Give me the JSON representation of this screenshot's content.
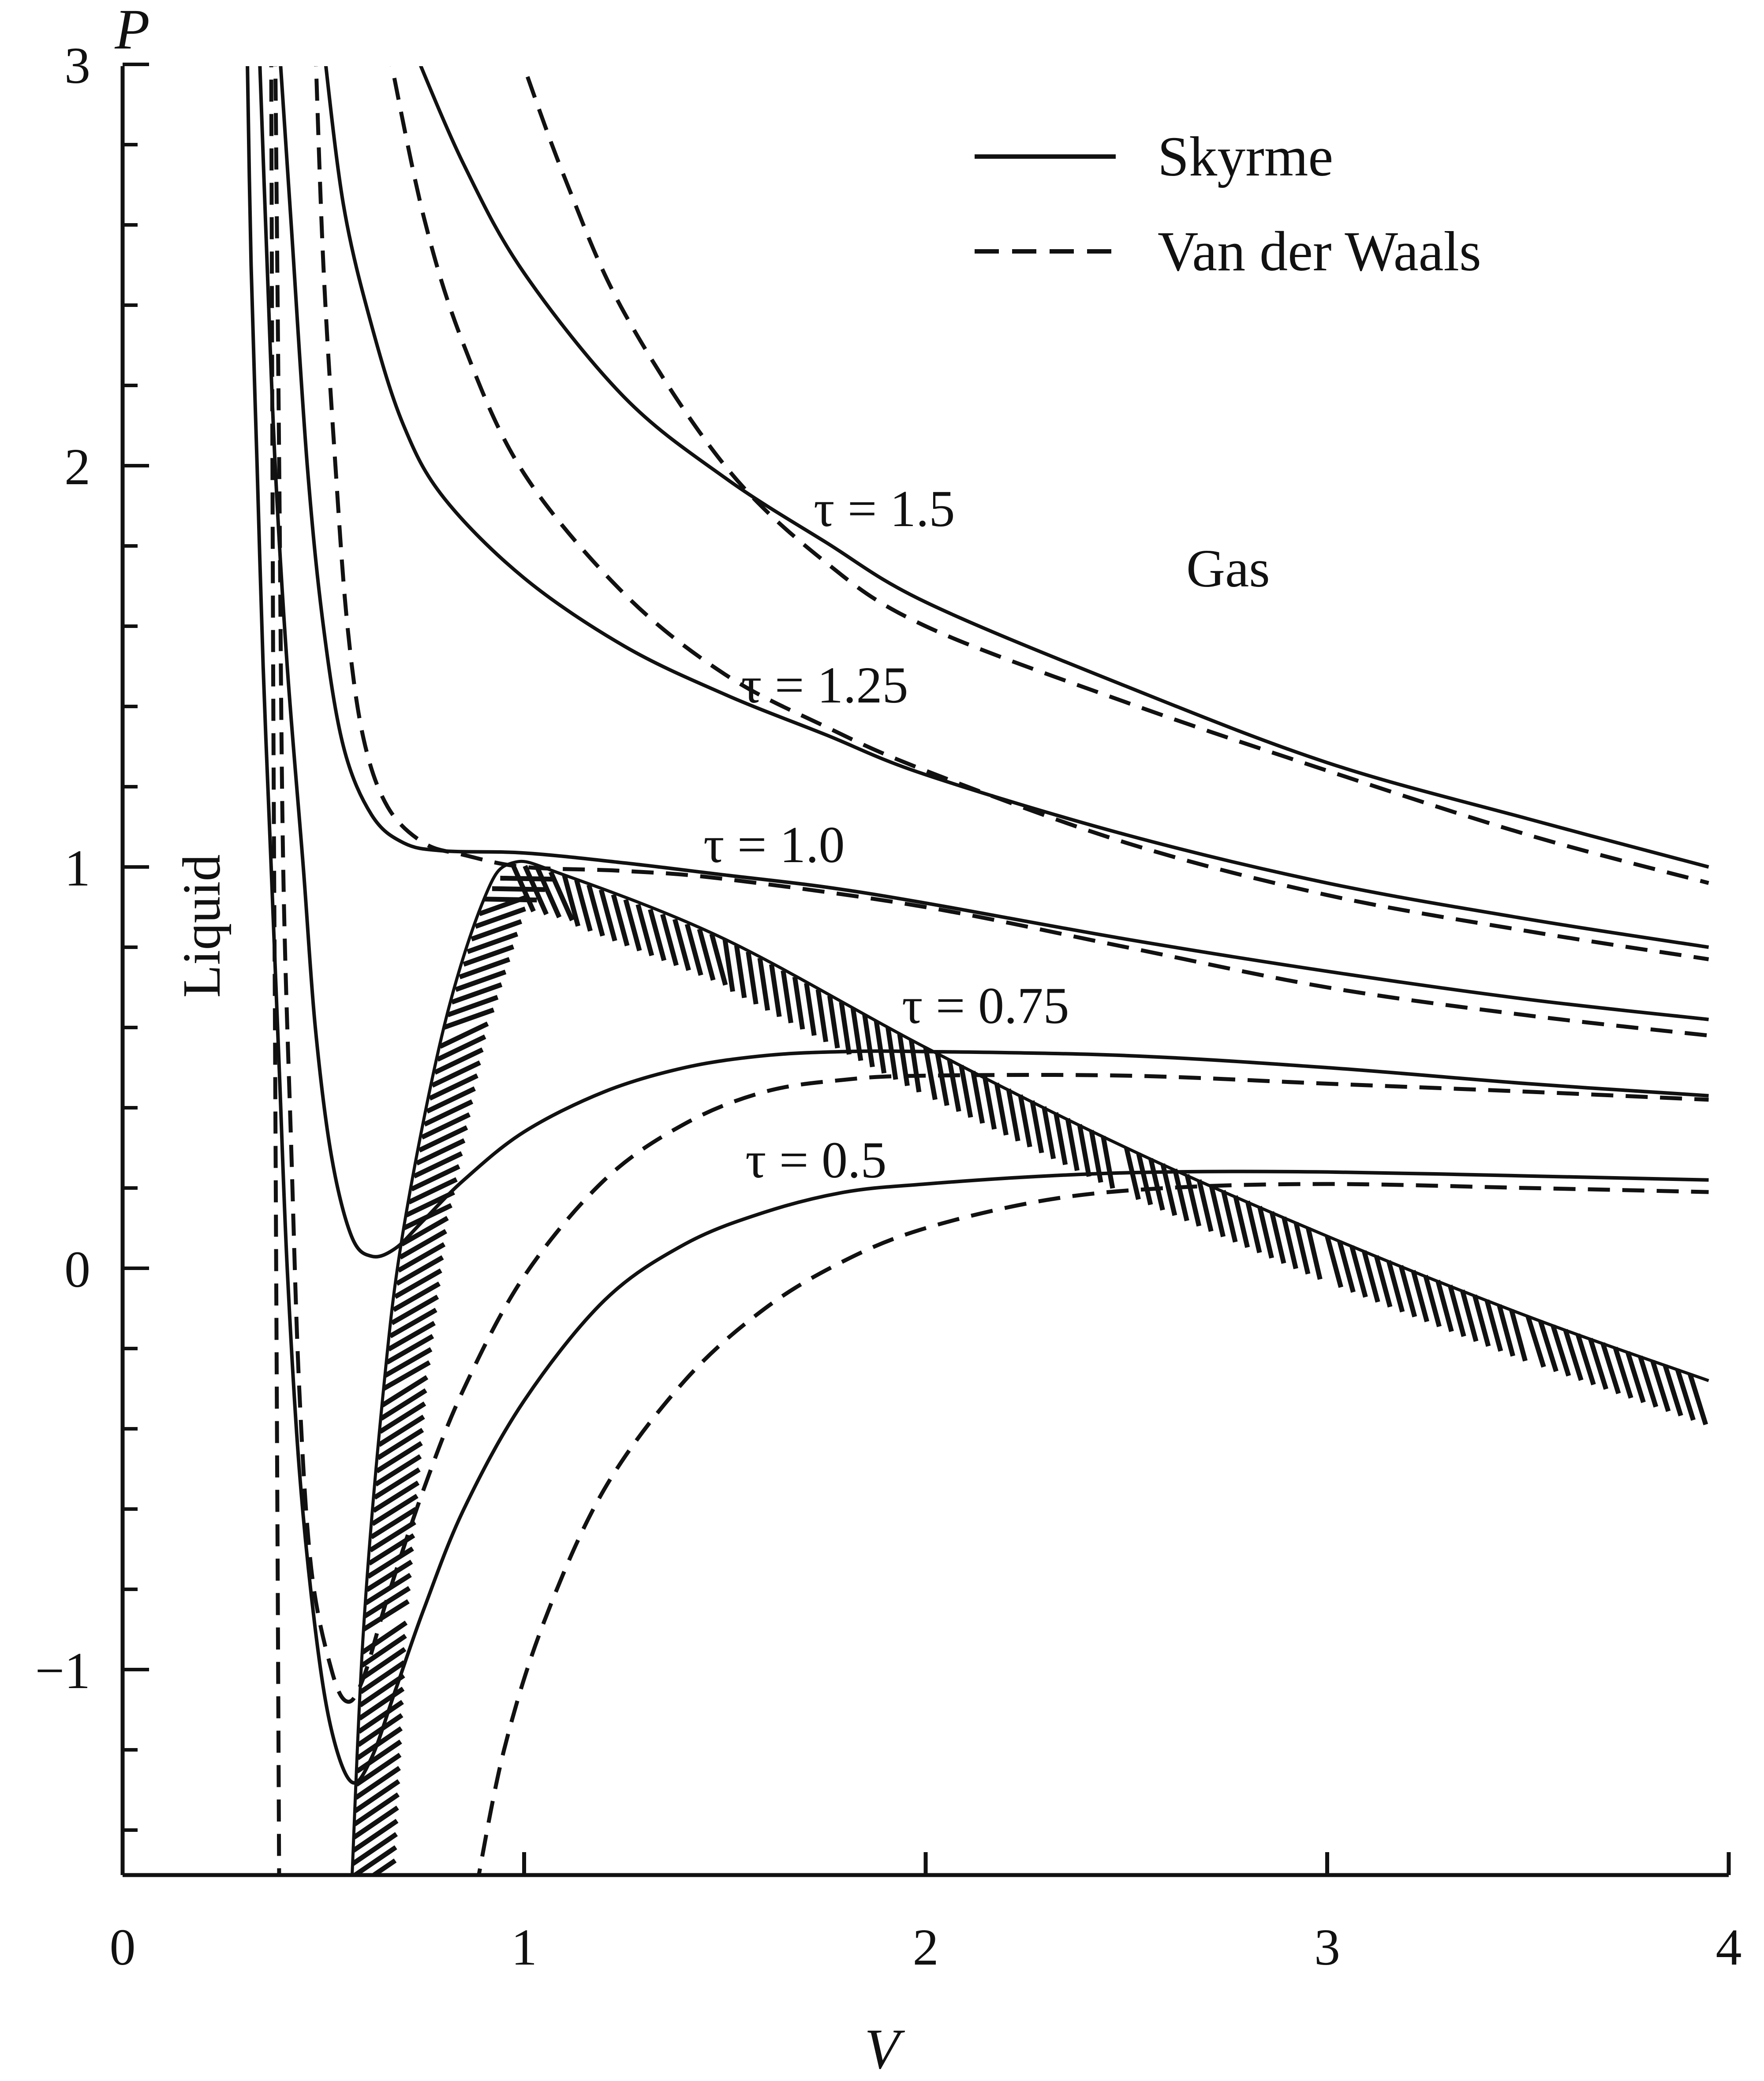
{
  "chart_data": {
    "type": "line",
    "title": "",
    "xlabel": "V",
    "ylabel": "P",
    "xlim": [
      0,
      4
    ],
    "ylim": [
      -1.55,
      3.1
    ],
    "x_ticks": [
      0,
      1,
      2,
      3,
      4
    ],
    "y_ticks": [
      -1,
      0,
      1,
      2,
      3
    ],
    "x_tick_labels": [
      "0",
      "1",
      "2",
      "3",
      "4"
    ],
    "y_tick_labels": [
      "−1",
      "0",
      "1",
      "2",
      "3"
    ],
    "grid": false,
    "legend": {
      "placement": "top-right",
      "entries": [
        {
          "label": "Skyrme",
          "style": "solid"
        },
        {
          "label": "Van der Waals",
          "style": "dashed"
        }
      ]
    },
    "annotations": [
      "τ = 1.5",
      "τ = 1.25",
      "τ = 1.0",
      "τ = 0.75",
      "τ = 0.5"
    ],
    "regions": [
      "Gas",
      "Liquid"
    ],
    "series": [
      {
        "model": "Skyrme",
        "style": "solid",
        "tau": 1.5,
        "points": [
          [
            0.72,
            3.05
          ],
          [
            0.85,
            2.75
          ],
          [
            1.0,
            2.48
          ],
          [
            1.25,
            2.17
          ],
          [
            1.5,
            1.97
          ],
          [
            1.75,
            1.81
          ],
          [
            2.0,
            1.66
          ],
          [
            2.5,
            1.45
          ],
          [
            3.0,
            1.26
          ],
          [
            3.5,
            1.12
          ],
          [
            3.95,
            1.0
          ]
        ]
      },
      {
        "model": "Skyrme",
        "style": "solid",
        "tau": 1.25,
        "points": [
          [
            0.5,
            3.05
          ],
          [
            0.55,
            2.65
          ],
          [
            0.62,
            2.35
          ],
          [
            0.7,
            2.1
          ],
          [
            0.8,
            1.92
          ],
          [
            1.0,
            1.72
          ],
          [
            1.25,
            1.55
          ],
          [
            1.5,
            1.43
          ],
          [
            1.75,
            1.33
          ],
          [
            2.0,
            1.23
          ],
          [
            2.5,
            1.08
          ],
          [
            3.0,
            0.96
          ],
          [
            3.5,
            0.87
          ],
          [
            3.95,
            0.8
          ]
        ]
      },
      {
        "model": "Skyrme",
        "style": "solid",
        "tau": 1.0,
        "points": [
          [
            0.39,
            3.05
          ],
          [
            0.42,
            2.6
          ],
          [
            0.46,
            2.0
          ],
          [
            0.5,
            1.6
          ],
          [
            0.55,
            1.3
          ],
          [
            0.62,
            1.13
          ],
          [
            0.7,
            1.06
          ],
          [
            0.8,
            1.04
          ],
          [
            1.0,
            1.035
          ],
          [
            1.25,
            1.01
          ],
          [
            1.5,
            0.98
          ],
          [
            1.75,
            0.95
          ],
          [
            2.0,
            0.91
          ],
          [
            2.5,
            0.82
          ],
          [
            3.0,
            0.74
          ],
          [
            3.5,
            0.67
          ],
          [
            3.95,
            0.62
          ]
        ]
      },
      {
        "model": "Skyrme",
        "style": "solid",
        "tau": 0.75,
        "points": [
          [
            0.34,
            3.05
          ],
          [
            0.36,
            2.5
          ],
          [
            0.38,
            2.0
          ],
          [
            0.41,
            1.5
          ],
          [
            0.45,
            1.0
          ],
          [
            0.48,
            0.6
          ],
          [
            0.52,
            0.28
          ],
          [
            0.57,
            0.08
          ],
          [
            0.62,
            0.03
          ],
          [
            0.68,
            0.05
          ],
          [
            0.75,
            0.12
          ],
          [
            0.85,
            0.22
          ],
          [
            1.0,
            0.34
          ],
          [
            1.2,
            0.44
          ],
          [
            1.4,
            0.5
          ],
          [
            1.6,
            0.53
          ],
          [
            1.8,
            0.54
          ],
          [
            2.0,
            0.54
          ],
          [
            2.5,
            0.53
          ],
          [
            3.0,
            0.5
          ],
          [
            3.5,
            0.46
          ],
          [
            3.95,
            0.43
          ]
        ]
      },
      {
        "model": "Skyrme",
        "style": "solid",
        "tau": 0.5,
        "points": [
          [
            0.31,
            3.05
          ],
          [
            0.32,
            2.5
          ],
          [
            0.335,
            2.0
          ],
          [
            0.35,
            1.5
          ],
          [
            0.37,
            1.0
          ],
          [
            0.39,
            0.5
          ],
          [
            0.41,
            0.0
          ],
          [
            0.44,
            -0.5
          ],
          [
            0.48,
            -0.9
          ],
          [
            0.52,
            -1.15
          ],
          [
            0.57,
            -1.28
          ],
          [
            0.62,
            -1.22
          ],
          [
            0.68,
            -1.05
          ],
          [
            0.75,
            -0.85
          ],
          [
            0.85,
            -0.6
          ],
          [
            1.0,
            -0.33
          ],
          [
            1.2,
            -0.08
          ],
          [
            1.4,
            0.06
          ],
          [
            1.6,
            0.14
          ],
          [
            1.8,
            0.19
          ],
          [
            2.0,
            0.21
          ],
          [
            2.3,
            0.23
          ],
          [
            2.6,
            0.24
          ],
          [
            3.0,
            0.24
          ],
          [
            3.5,
            0.23
          ],
          [
            3.95,
            0.22
          ]
        ]
      },
      {
        "model": "Van der Waals",
        "style": "dashed",
        "tau": 1.5,
        "points": [
          [
            0.98,
            3.05
          ],
          [
            1.1,
            2.72
          ],
          [
            1.25,
            2.38
          ],
          [
            1.5,
            2.0
          ],
          [
            1.75,
            1.76
          ],
          [
            2.0,
            1.6
          ],
          [
            2.5,
            1.41
          ],
          [
            3.0,
            1.24
          ],
          [
            3.5,
            1.08
          ],
          [
            3.95,
            0.96
          ]
        ]
      },
      {
        "model": "Van der Waals",
        "style": "dashed",
        "tau": 1.25,
        "points": [
          [
            0.66,
            3.05
          ],
          [
            0.75,
            2.62
          ],
          [
            0.85,
            2.3
          ],
          [
            1.0,
            1.98
          ],
          [
            1.25,
            1.68
          ],
          [
            1.5,
            1.48
          ],
          [
            1.75,
            1.35
          ],
          [
            2.0,
            1.24
          ],
          [
            2.5,
            1.06
          ],
          [
            3.0,
            0.93
          ],
          [
            3.5,
            0.84
          ],
          [
            3.95,
            0.77
          ]
        ]
      },
      {
        "model": "Van der Waals",
        "style": "dashed",
        "tau": 1.0,
        "points": [
          [
            0.48,
            3.05
          ],
          [
            0.5,
            2.5
          ],
          [
            0.53,
            2.0
          ],
          [
            0.56,
            1.6
          ],
          [
            0.6,
            1.32
          ],
          [
            0.66,
            1.15
          ],
          [
            0.75,
            1.06
          ],
          [
            0.85,
            1.03
          ],
          [
            1.0,
            1.0
          ],
          [
            1.25,
            0.99
          ],
          [
            1.5,
            0.97
          ],
          [
            2.0,
            0.9
          ],
          [
            2.5,
            0.8
          ],
          [
            3.0,
            0.7
          ],
          [
            3.5,
            0.63
          ],
          [
            3.95,
            0.58
          ]
        ]
      },
      {
        "model": "Van der Waals",
        "style": "dashed",
        "tau": 0.75,
        "points": [
          [
            0.38,
            3.05
          ],
          [
            0.39,
            2.0
          ],
          [
            0.4,
            1.0
          ],
          [
            0.42,
            0.3
          ],
          [
            0.44,
            -0.3
          ],
          [
            0.47,
            -0.75
          ],
          [
            0.52,
            -1.0
          ],
          [
            0.56,
            -1.08
          ],
          [
            0.6,
            -1.02
          ],
          [
            0.66,
            -0.82
          ],
          [
            0.75,
            -0.55
          ],
          [
            0.85,
            -0.3
          ],
          [
            1.0,
            -0.02
          ],
          [
            1.2,
            0.22
          ],
          [
            1.4,
            0.36
          ],
          [
            1.6,
            0.44
          ],
          [
            1.8,
            0.47
          ],
          [
            2.0,
            0.48
          ],
          [
            2.5,
            0.48
          ],
          [
            3.0,
            0.46
          ],
          [
            3.5,
            0.44
          ],
          [
            3.95,
            0.42
          ]
        ]
      },
      {
        "model": "Van der Waals",
        "style": "dashed",
        "tau": 0.5,
        "points": [
          [
            0.88,
            -1.55
          ],
          [
            0.95,
            -1.2
          ],
          [
            1.05,
            -0.88
          ],
          [
            1.2,
            -0.55
          ],
          [
            1.4,
            -0.28
          ],
          [
            1.6,
            -0.1
          ],
          [
            1.8,
            0.02
          ],
          [
            2.0,
            0.1
          ],
          [
            2.3,
            0.17
          ],
          [
            2.6,
            0.2
          ],
          [
            3.0,
            0.21
          ],
          [
            3.5,
            0.2
          ],
          [
            3.95,
            0.19
          ]
        ]
      },
      {
        "model": "Van der Waals",
        "style": "dashed",
        "tau": 0.5,
        "points": [
          [
            0.39,
            -1.55
          ],
          [
            0.385,
            -0.5
          ],
          [
            0.38,
            0.5
          ],
          [
            0.375,
            1.5
          ],
          [
            0.37,
            3.05
          ]
        ]
      }
    ],
    "spinodal_band": [
      [
        0.57,
        -1.55
      ],
      [
        0.6,
        -0.9
      ],
      [
        0.65,
        -0.3
      ],
      [
        0.7,
        0.1
      ],
      [
        0.8,
        0.6
      ],
      [
        0.9,
        0.92
      ],
      [
        0.97,
        1.01
      ],
      [
        1.1,
        0.98
      ],
      [
        1.5,
        0.82
      ],
      [
        2.0,
        0.55
      ],
      [
        2.5,
        0.3
      ],
      [
        3.0,
        0.08
      ],
      [
        3.5,
        -0.12
      ],
      [
        3.95,
        -0.28
      ]
    ]
  }
}
